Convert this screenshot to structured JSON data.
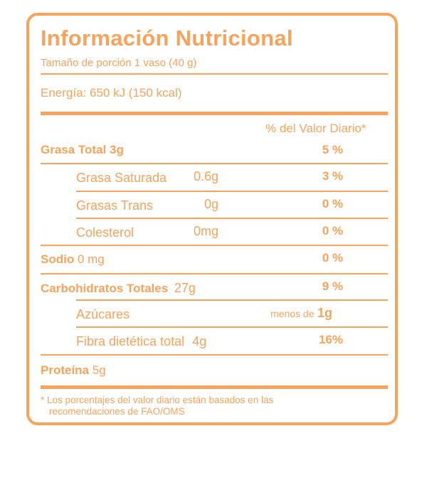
{
  "label": {
    "title": "Información Nutricional",
    "serving": "Tamaño de porción 1 vaso (40 g)",
    "energy": "Energía: 650 kJ (150 kcal)",
    "dv_header": "% del Valor Diario*",
    "fat_total": {
      "name": "Grasa Total 3g",
      "pct": "5 %"
    },
    "sat_fat": {
      "name": "Grasa Saturada",
      "qty": "0.6g",
      "pct": "3 %"
    },
    "trans_fat": {
      "name": "Grasas Trans",
      "qty": "0g",
      "pct": "0 %"
    },
    "cholesterol": {
      "name": "Colesterol",
      "qty": "0mg",
      "pct": "0 %"
    },
    "sodium": {
      "name": "Sodio",
      "qty": "0 mg",
      "pct": "0 %"
    },
    "carbs": {
      "name": "Carbohidratos Totales",
      "qty": "27g",
      "pct": "9 %"
    },
    "sugars": {
      "name": "Azúcares",
      "prefix": "menos de",
      "qty": "1g"
    },
    "fiber": {
      "name": "Fibra dietética total",
      "qty": "4g",
      "pct": "16%"
    },
    "protein": {
      "name": "Proteína",
      "qty": "5g"
    },
    "footnote_line1": "* Los porcentajes del valor diario están basados en las",
    "footnote_line2": "recomendaciones de FAO/OMS",
    "accent_color": "#f7a35c"
  }
}
